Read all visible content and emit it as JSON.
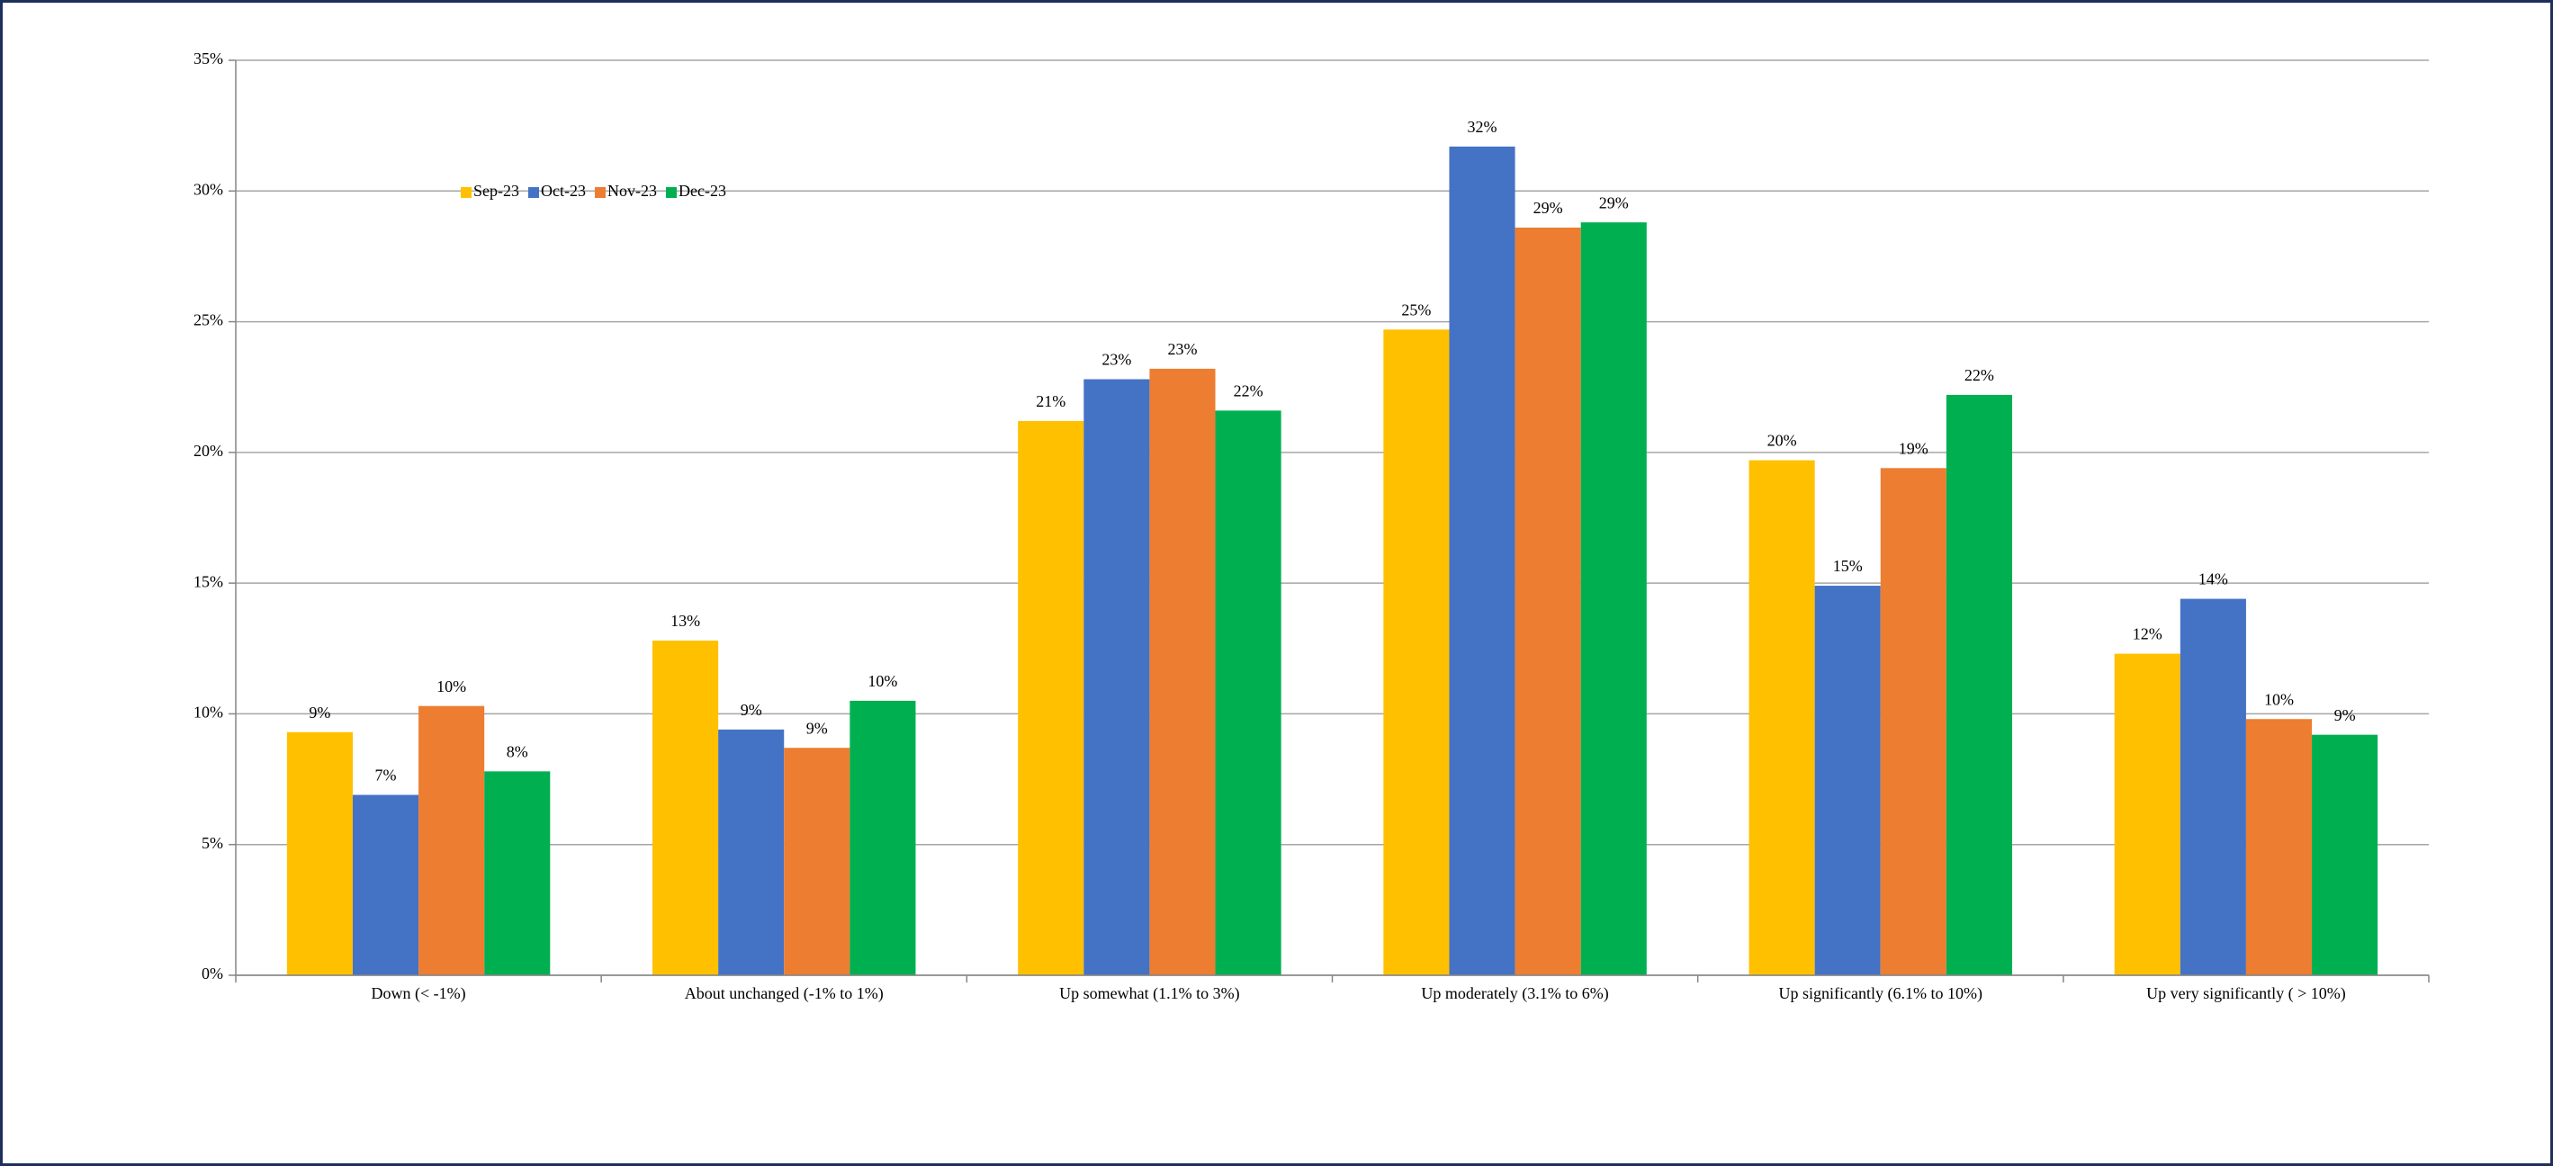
{
  "chart_data": {
    "type": "bar",
    "categories": [
      "Down (< -1%)",
      "About unchanged (-1% to 1%)",
      "Up somewhat (1.1% to 3%)",
      "Up moderately (3.1% to 6%)",
      "Up significantly (6.1% to 10%)",
      "Up very significantly ( > 10%)"
    ],
    "series": [
      {
        "name": "Sep-23",
        "color": "#ffc000",
        "values": [
          9.3,
          12.8,
          21.2,
          24.7,
          19.7,
          12.3
        ],
        "value_labels": [
          "9%",
          "13%",
          "21%",
          "25%",
          "20%",
          "12%"
        ]
      },
      {
        "name": "Oct-23",
        "color": "#4472c4",
        "values": [
          6.9,
          9.4,
          22.8,
          31.7,
          14.9,
          14.4
        ],
        "value_labels": [
          "7%",
          "9%",
          "23%",
          "32%",
          "15%",
          "14%"
        ]
      },
      {
        "name": "Nov-23",
        "color": "#ed7d31",
        "values": [
          10.3,
          8.7,
          23.2,
          28.6,
          19.4,
          9.8
        ],
        "value_labels": [
          "10%",
          "9%",
          "23%",
          "29%",
          "19%",
          "10%"
        ]
      },
      {
        "name": "Dec-23",
        "color": "#00b050",
        "values": [
          7.8,
          10.5,
          21.6,
          28.8,
          22.2,
          9.2
        ],
        "value_labels": [
          "8%",
          "10%",
          "22%",
          "29%",
          "22%",
          "9%"
        ]
      }
    ],
    "ylim": [
      0,
      35
    ],
    "yticks": [
      {
        "value": 0,
        "label": "0%"
      },
      {
        "value": 5,
        "label": "5%"
      },
      {
        "value": 10,
        "label": "10%"
      },
      {
        "value": 15,
        "label": "15%"
      },
      {
        "value": 20,
        "label": "20%"
      },
      {
        "value": 25,
        "label": "25%"
      },
      {
        "value": 30,
        "label": "30%"
      },
      {
        "value": 35,
        "label": "35%"
      }
    ],
    "grid": true
  }
}
